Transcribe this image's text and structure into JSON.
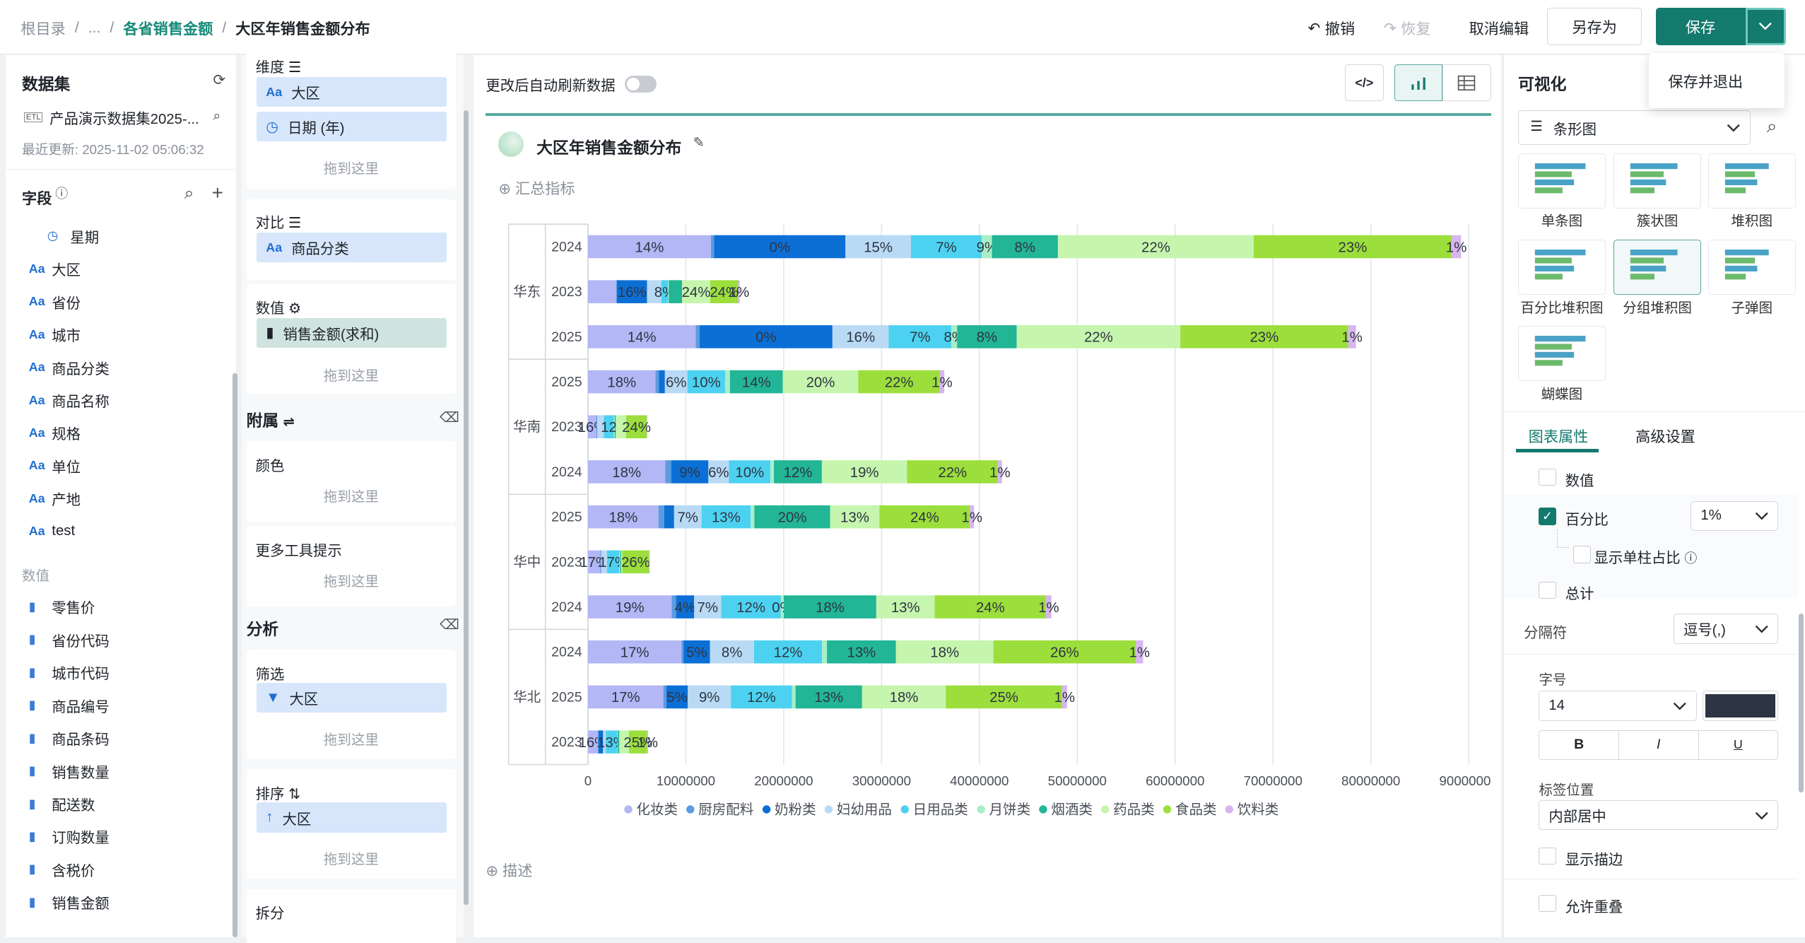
{
  "breadcrumb": {
    "root": "根目录",
    "ellipsis": "...",
    "parent": "各省销售金额",
    "current": "大区年销售金额分布",
    "sep": "/"
  },
  "toolbar": {
    "undo": "撤销",
    "redo": "恢复",
    "cancel_edit": "取消编辑",
    "save_as": "另存为",
    "save": "保存",
    "save_exit": "保存并退出"
  },
  "dataset": {
    "title": "数据集",
    "name": "产品演示数据集2025-...",
    "updated": "最近更新: 2025-11-02 05:06:32",
    "fields_label": "字段",
    "dim_fields": [
      "星期",
      "大区",
      "省份",
      "城市",
      "商品分类",
      "商品名称",
      "规格",
      "单位",
      "产地",
      "test"
    ],
    "measure_label": "数值",
    "measure_fields": [
      "零售价",
      "省份代码",
      "城市代码",
      "商品编号",
      "商品条码",
      "销售数量",
      "配送数",
      "订购数量",
      "含税价",
      "销售金额"
    ],
    "type_text": "Aa",
    "etl": "ETL"
  },
  "config": {
    "dimension": {
      "label": "维度",
      "pills": [
        "大区",
        "日期 (年)"
      ]
    },
    "compare": {
      "label": "对比",
      "pills": [
        "商品分类"
      ]
    },
    "value": {
      "label": "数值",
      "pills": [
        "销售金额(求和)"
      ]
    },
    "drop_here": "拖到这里",
    "attach": "附属",
    "color": "颜色",
    "tooltip": "更多工具提示",
    "analysis": "分析",
    "filter": {
      "label": "筛选",
      "pills": [
        "大区"
      ]
    },
    "sort": {
      "label": "排序",
      "pills": [
        "大区"
      ]
    },
    "split": "拆分"
  },
  "chart_panel": {
    "auto_refresh": "更改后自动刷新数据",
    "title": "大区年销售金额分布",
    "summary": "汇总指标",
    "describe": "描述"
  },
  "chart_data": {
    "type": "bar",
    "orientation": "horizontal-stacked",
    "categories": [
      "华东-2024",
      "华东-2023",
      "华东-2025",
      "华南-2025",
      "华南-2023",
      "华南-2024",
      "华中-2025",
      "华中-2023",
      "华中-2024",
      "华北-2024",
      "华北-2025",
      "华北-2023"
    ],
    "groups": [
      {
        "name": "华东",
        "years": [
          "2024",
          "2023",
          "2025"
        ]
      },
      {
        "name": "华南",
        "years": [
          "2025",
          "2023",
          "2024"
        ]
      },
      {
        "name": "华中",
        "years": [
          "2025",
          "2023",
          "2024"
        ]
      },
      {
        "name": "华北",
        "years": [
          "2024",
          "2025",
          "2023"
        ]
      }
    ],
    "colors": [
      "#b3b7f5",
      "#5b9be0",
      "#0c6fd6",
      "#b9daf5",
      "#4cd2f0",
      "#a7efc7",
      "#22b596",
      "#c6f5ad",
      "#9cde3c",
      "#d7b6ee"
    ],
    "series": [
      {
        "name": "化妆类",
        "values": [
          12560000,
          2880000,
          11000000,
          6900000,
          880000,
          7900000,
          7200000,
          1250000,
          8550000,
          9560000,
          7700000,
          1000000
        ]
      },
      {
        "name": "厨房配料",
        "values": [
          330000,
          70000,
          400000,
          360000,
          30000,
          600000,
          600000,
          70000,
          450000,
          200000,
          300000,
          90000
        ]
      },
      {
        "name": "奶粉类",
        "values": [
          13420000,
          3080000,
          13580000,
          600000,
          30000,
          3800000,
          1000000,
          30000,
          1850000,
          2700000,
          2200000,
          450000
        ]
      },
      {
        "name": "妇幼用品",
        "values": [
          6690000,
          1460000,
          5750000,
          2300000,
          680000,
          2100000,
          2800000,
          600000,
          2750000,
          4500000,
          4400000,
          280000
        ]
      },
      {
        "name": "日用品类",
        "values": [
          7240000,
          700000,
          6410000,
          3850000,
          1010000,
          4250000,
          5020000,
          1250000,
          6110000,
          6960000,
          6240000,
          1190000
        ]
      },
      {
        "name": "月饼类",
        "values": [
          1040000,
          70000,
          580000,
          500000,
          100000,
          350000,
          380000,
          90000,
          300000,
          500000,
          370000,
          50000
        ]
      },
      {
        "name": "烟酒类",
        "values": [
          6740000,
          1350000,
          6090000,
          5400000,
          110000,
          4900000,
          7750000,
          100000,
          9450000,
          7050000,
          6800000,
          140000
        ]
      },
      {
        "name": "药品类",
        "values": [
          20010000,
          2880000,
          16720000,
          7700000,
          1050000,
          8700000,
          5040000,
          120000,
          5970000,
          9960000,
          8550000,
          990000
        ]
      },
      {
        "name": "食品类",
        "values": [
          20220000,
          2860000,
          17150000,
          8350000,
          2130000,
          9300000,
          9230000,
          2730000,
          11380000,
          14550000,
          11890000,
          1850000
        ]
      },
      {
        "name": "饮料类",
        "values": [
          970000,
          150000,
          800000,
          450000,
          30000,
          400000,
          430000,
          70000,
          550000,
          750000,
          500000,
          100000
        ]
      }
    ],
    "labels": [
      [
        "14%",
        "",
        "0%",
        "15%",
        "7%",
        "9%",
        "8%",
        "22%",
        "23%",
        "1%"
      ],
      [
        "",
        "",
        "16%",
        "",
        "8%",
        "",
        "",
        "24%",
        "24%",
        "1%"
      ],
      [
        "14%",
        "",
        "0%",
        "16%",
        "7%",
        "8%",
        "8%",
        "22%",
        "23%",
        "1%"
      ],
      [
        "18%",
        "",
        "",
        "6%",
        "10%",
        "",
        "14%",
        "20%",
        "22%",
        "1%"
      ],
      [
        "16%",
        "",
        "",
        "",
        "",
        "",
        "12%",
        "",
        "24%",
        ""
      ],
      [
        "18%",
        "",
        "9%",
        "6%",
        "10%",
        "",
        "12%",
        "19%",
        "22%",
        "1%"
      ],
      [
        "18%",
        "",
        "",
        "7%",
        "13%",
        "",
        "20%",
        "13%",
        "24%",
        "1%"
      ],
      [
        "17%",
        "",
        "",
        "",
        "17%",
        "",
        "",
        "",
        "26%",
        ""
      ],
      [
        "19%",
        "",
        "4%",
        "7%",
        "12%",
        "0%",
        "18%",
        "13%",
        "24%",
        "1%"
      ],
      [
        "17%",
        "",
        "5%",
        "8%",
        "12%",
        "",
        "13%",
        "18%",
        "26%",
        "1%"
      ],
      [
        "17%",
        "",
        "5%",
        "9%",
        "12%",
        "",
        "13%",
        "18%",
        "25%",
        "1%"
      ],
      [
        "16%",
        "",
        "",
        "",
        "13%",
        "",
        "",
        "",
        "25%",
        "1%"
      ]
    ],
    "xlim": [
      0,
      90000000
    ],
    "xticks": [
      "0",
      "10000000",
      "20000000",
      "30000000",
      "40000000",
      "50000000",
      "60000000",
      "70000000",
      "80000000",
      "90000000"
    ],
    "legend": "bottom",
    "grid": true
  },
  "visual": {
    "title": "可视化",
    "chart_select": "条形图",
    "types": [
      "单条图",
      "簇状图",
      "堆积图",
      "百分比堆积图",
      "分组堆积图",
      "子弹图",
      "蝴蝶图"
    ],
    "tabs": [
      "图表属性",
      "高级设置"
    ],
    "props": {
      "value": "数值",
      "percent": "百分比",
      "percent_value": "1%",
      "show_single": "显示单柱占比",
      "total": "总计",
      "separator_label": "分隔符",
      "separator_value": "逗号(,)",
      "font_label": "字号",
      "font_size": "14",
      "font_color": "#2d3442",
      "bold": "B",
      "italic": "I",
      "underline": "U",
      "label_pos_label": "标签位置",
      "label_pos_value": "内部居中",
      "show_stroke": "显示描边",
      "allow_overlap": "允许重叠"
    }
  }
}
